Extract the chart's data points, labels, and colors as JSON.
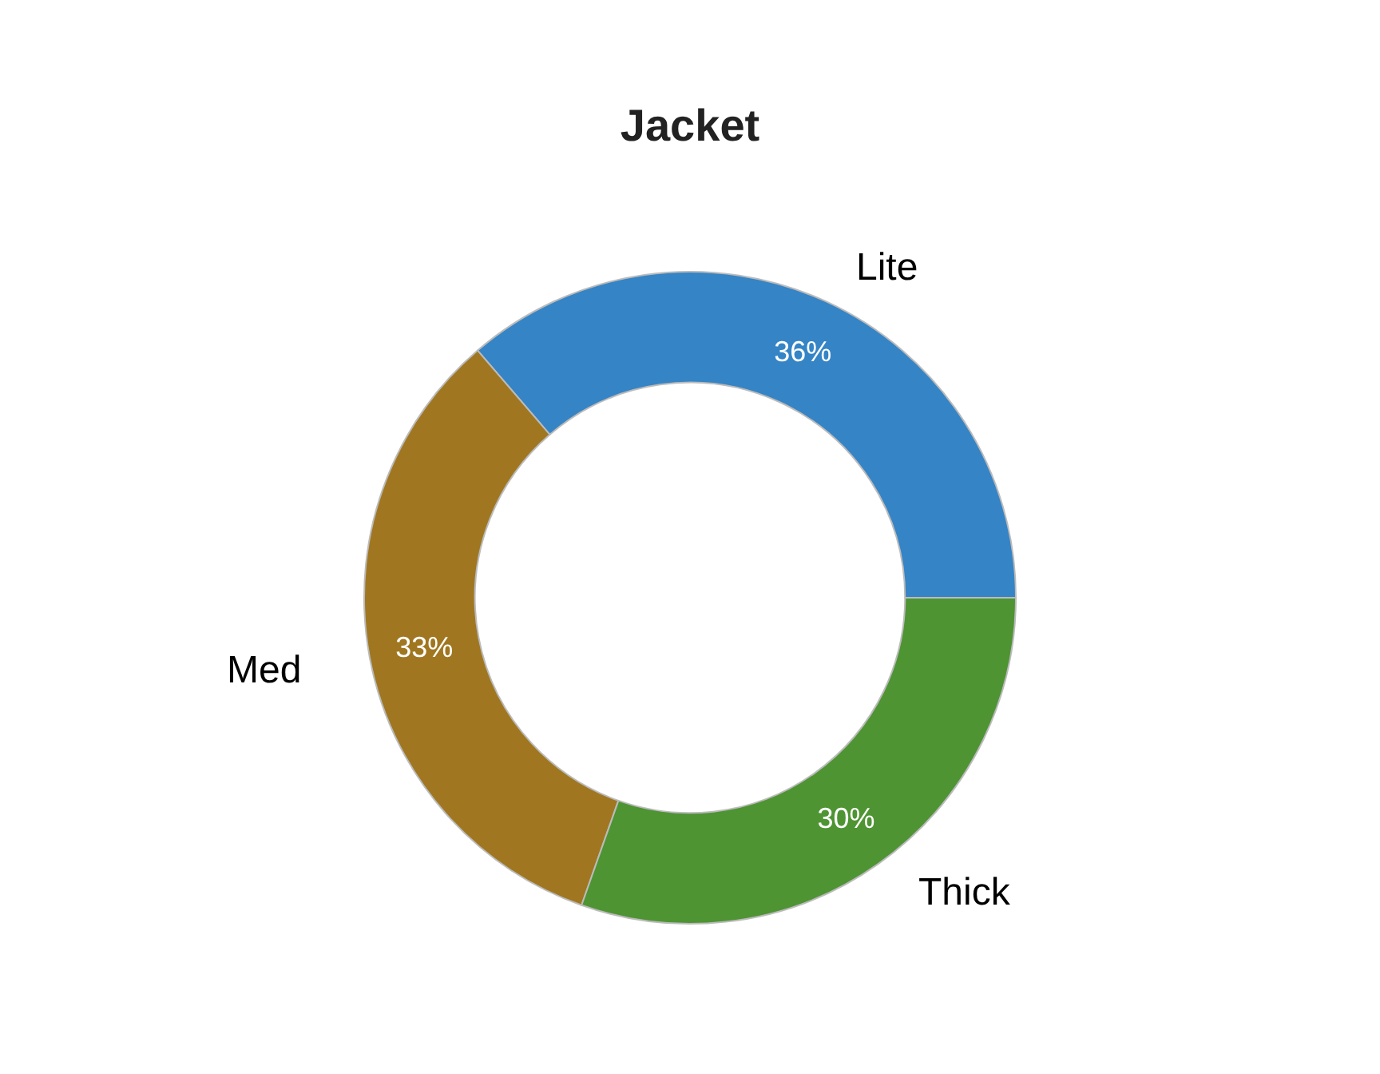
{
  "chart_data": {
    "type": "donut",
    "title": "Jacket",
    "categories": [
      "Lite",
      "Med",
      "Thick"
    ],
    "values": [
      36.3,
      33.3,
      30.4
    ],
    "value_labels": [
      "36%",
      "33%",
      "30%"
    ],
    "colors": [
      "#3584c6",
      "#a07720",
      "#4e9433"
    ],
    "legend": false
  }
}
